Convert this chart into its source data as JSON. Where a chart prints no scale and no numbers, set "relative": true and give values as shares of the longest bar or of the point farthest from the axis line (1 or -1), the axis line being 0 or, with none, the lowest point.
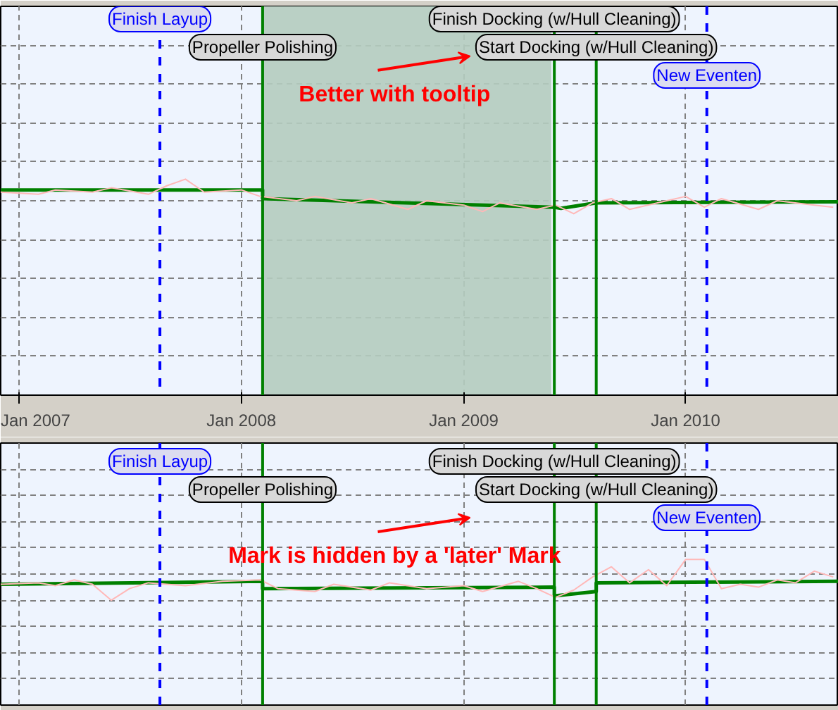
{
  "chart_data": [
    {
      "type": "line",
      "relative": true,
      "grid": true,
      "tick_labels": "x",
      "xlim": [
        "2006-12-01",
        "2010-09-10"
      ],
      "xticks": [
        {
          "value": "2007-01-01",
          "label": "Jan 2007"
        },
        {
          "value": "2008-01-01",
          "label": "Jan 2008"
        },
        {
          "value": "2009-01-01",
          "label": "Jan 2009"
        },
        {
          "value": "2010-01-01",
          "label": "Jan 2010"
        }
      ],
      "series": [
        {
          "color": "#ffb8b8",
          "x": [
            "2006-12-01",
            "2007-02-01",
            "2007-03-01",
            "2007-05-01",
            "2007-06-01",
            "2007-08-01",
            "2007-09-01",
            "2007-10-01",
            "2007-11-01",
            "2008-01-01",
            "2008-02-01",
            "2008-04-01",
            "2008-05-01",
            "2008-07-01",
            "2008-08-01",
            "2008-10-01",
            "2008-11-01",
            "2009-01-01",
            "2009-02-01",
            "2009-03-01",
            "2009-05-01",
            "2009-06-01",
            "2009-07-01",
            "2009-08-01",
            "2009-09-01",
            "2009-10-01",
            "2009-12-01",
            "2010-01-01",
            "2010-02-01",
            "2010-03-01",
            "2010-05-01",
            "2010-06-01",
            "2010-08-01",
            "2010-09-01"
          ],
          "values": [
            0.94,
            0.93,
            0.95,
            0.94,
            0.96,
            0.93,
            0.97,
            1.0,
            0.94,
            0.95,
            0.92,
            0.9,
            0.92,
            0.89,
            0.91,
            0.86,
            0.9,
            0.88,
            0.85,
            0.89,
            0.86,
            0.88,
            0.84,
            0.89,
            0.91,
            0.86,
            0.9,
            0.92,
            0.87,
            0.91,
            0.86,
            0.9,
            0.88,
            0.87
          ]
        },
        {
          "color": "#008000",
          "x": [
            "2006-12-01",
            "2008-02-05",
            "2008-02-05",
            "2009-05-30",
            "2009-06-10",
            "2009-08-07",
            "2010-09-10"
          ],
          "values": [
            0.95,
            0.95,
            0.91,
            0.87,
            0.865,
            0.89,
            0.895
          ]
        }
      ],
      "bands": [
        {
          "axis": "x",
          "from": "2008-02-05",
          "to": "2009-05-25",
          "color": "#b4ccbf"
        }
      ],
      "ref_lines": [
        {
          "axis": "x",
          "value": "2007-08-20",
          "label": "Finish Layup",
          "color": "#0000ff",
          "line_style": "dashed"
        },
        {
          "axis": "x",
          "value": "2008-02-05",
          "label": "Propeller Polishing",
          "color": "#008000",
          "line_style": "solid"
        },
        {
          "axis": "x",
          "value": "2009-05-30",
          "label": "Finish Docking (w/Hull Cleaning)",
          "color": "#008000",
          "line_style": "solid"
        },
        {
          "axis": "x",
          "value": "2009-08-07",
          "label": "Start Docking (w/Hull Cleaning)",
          "color": "#008000",
          "line_style": "solid"
        },
        {
          "axis": "x",
          "value": "2010-02-05",
          "label": "New Eventen",
          "color": "#0000ff",
          "line_style": "dashed"
        }
      ],
      "annotations": [
        "Better with tooltip"
      ]
    },
    {
      "type": "line",
      "relative": true,
      "grid": true,
      "tick_labels": false,
      "xlim": [
        "2006-12-01",
        "2010-09-10"
      ],
      "xticks": [
        {
          "value": "2007-01-01",
          "label": null
        },
        {
          "value": "2008-01-01",
          "label": null
        },
        {
          "value": "2009-01-01",
          "label": null
        },
        {
          "value": "2010-01-01",
          "label": null
        }
      ],
      "series": [
        {
          "color": "#ffb8b8",
          "x": [
            "2006-12-01",
            "2007-02-01",
            "2007-03-01",
            "2007-04-01",
            "2007-05-01",
            "2007-06-01",
            "2007-07-01",
            "2007-08-01",
            "2007-10-01",
            "2007-12-01",
            "2008-02-01",
            "2008-03-01",
            "2008-05-01",
            "2008-06-01",
            "2008-08-01",
            "2008-09-01",
            "2008-11-01",
            "2009-01-01",
            "2009-02-01",
            "2009-04-01",
            "2009-05-01",
            "2009-06-01",
            "2009-07-01",
            "2009-08-01",
            "2009-09-01",
            "2009-10-01",
            "2009-11-01",
            "2009-12-01",
            "2010-01-01",
            "2010-02-01",
            "2010-03-01",
            "2010-04-01",
            "2010-05-01",
            "2010-06-01",
            "2010-07-01",
            "2010-08-01",
            "2010-09-01"
          ],
          "values": [
            0.83,
            0.84,
            0.82,
            0.86,
            0.83,
            0.72,
            0.8,
            0.84,
            0.82,
            0.85,
            0.86,
            0.8,
            0.78,
            0.83,
            0.79,
            0.84,
            0.8,
            0.82,
            0.78,
            0.85,
            0.8,
            0.74,
            0.79,
            0.88,
            0.95,
            0.84,
            0.93,
            0.82,
            1.0,
            1.0,
            0.8,
            0.83,
            0.81,
            0.86,
            0.84,
            0.92,
            0.88
          ]
        },
        {
          "color": "#008000",
          "x": [
            "2006-12-01",
            "2008-02-05",
            "2008-02-05",
            "2009-05-30",
            "2009-05-30",
            "2009-08-07",
            "2009-08-07",
            "2010-09-10"
          ],
          "values": [
            0.83,
            0.85,
            0.8,
            0.81,
            0.75,
            0.78,
            0.84,
            0.85
          ]
        }
      ],
      "ref_lines": [
        {
          "axis": "x",
          "value": "2007-08-20",
          "label": "Finish Layup",
          "color": "#0000ff",
          "line_style": "dashed"
        },
        {
          "axis": "x",
          "value": "2008-02-05",
          "label": "Propeller Polishing",
          "color": "#008000",
          "line_style": "solid"
        },
        {
          "axis": "x",
          "value": "2009-05-30",
          "label": "Finish Docking (w/Hull Cleaning)",
          "color": "#008000",
          "line_style": "solid"
        },
        {
          "axis": "x",
          "value": "2009-08-07",
          "label": "Start Docking (w/Hull Cleaning)",
          "color": "#008000",
          "line_style": "solid"
        },
        {
          "axis": "x",
          "value": "2010-02-05",
          "label": "New Eventen",
          "color": "#0000ff",
          "line_style": "dashed"
        }
      ],
      "annotations": [
        "Mark is hidden by a 'later' Mark"
      ]
    }
  ]
}
